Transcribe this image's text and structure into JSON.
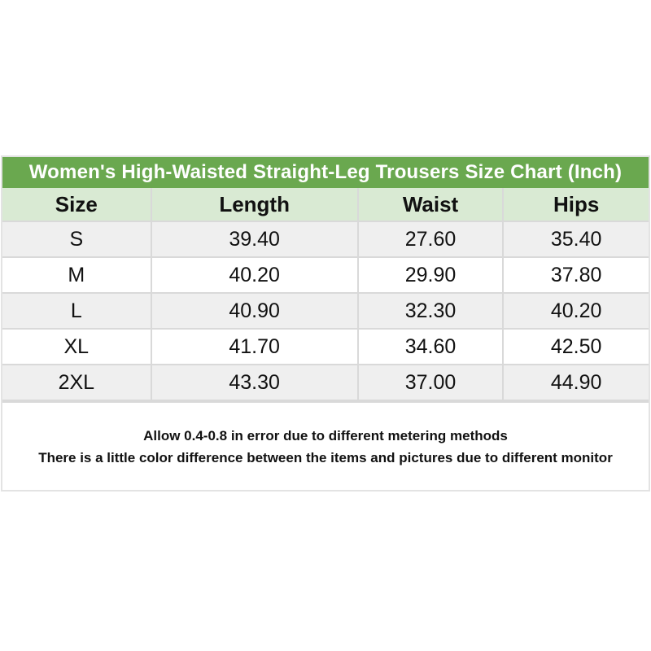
{
  "title": "Women's High-Waisted Straight-Leg Trousers Size Chart (Inch)",
  "chart_data": {
    "type": "table",
    "unit": "Inch",
    "columns": [
      "Size",
      "Length",
      "Waist",
      "Hips"
    ],
    "rows": [
      [
        "S",
        "39.40",
        "27.60",
        "35.40"
      ],
      [
        "M",
        "40.20",
        "29.90",
        "37.80"
      ],
      [
        "L",
        "40.90",
        "32.30",
        "40.20"
      ],
      [
        "XL",
        "41.70",
        "34.60",
        "42.50"
      ],
      [
        "2XL",
        "43.30",
        "37.00",
        "44.90"
      ]
    ]
  },
  "notes": [
    "Allow 0.4-0.8 in error due to different metering methods",
    "There is a little color difference between the items and pictures due to different monitor"
  ],
  "colors": {
    "title_bg": "#6aa84f",
    "title_text": "#ffffff",
    "header_bg": "#d9ead3",
    "row_alt_bg": "#efefef",
    "row_bg": "#ffffff",
    "border": "#d9d9d9",
    "text": "#111111"
  }
}
